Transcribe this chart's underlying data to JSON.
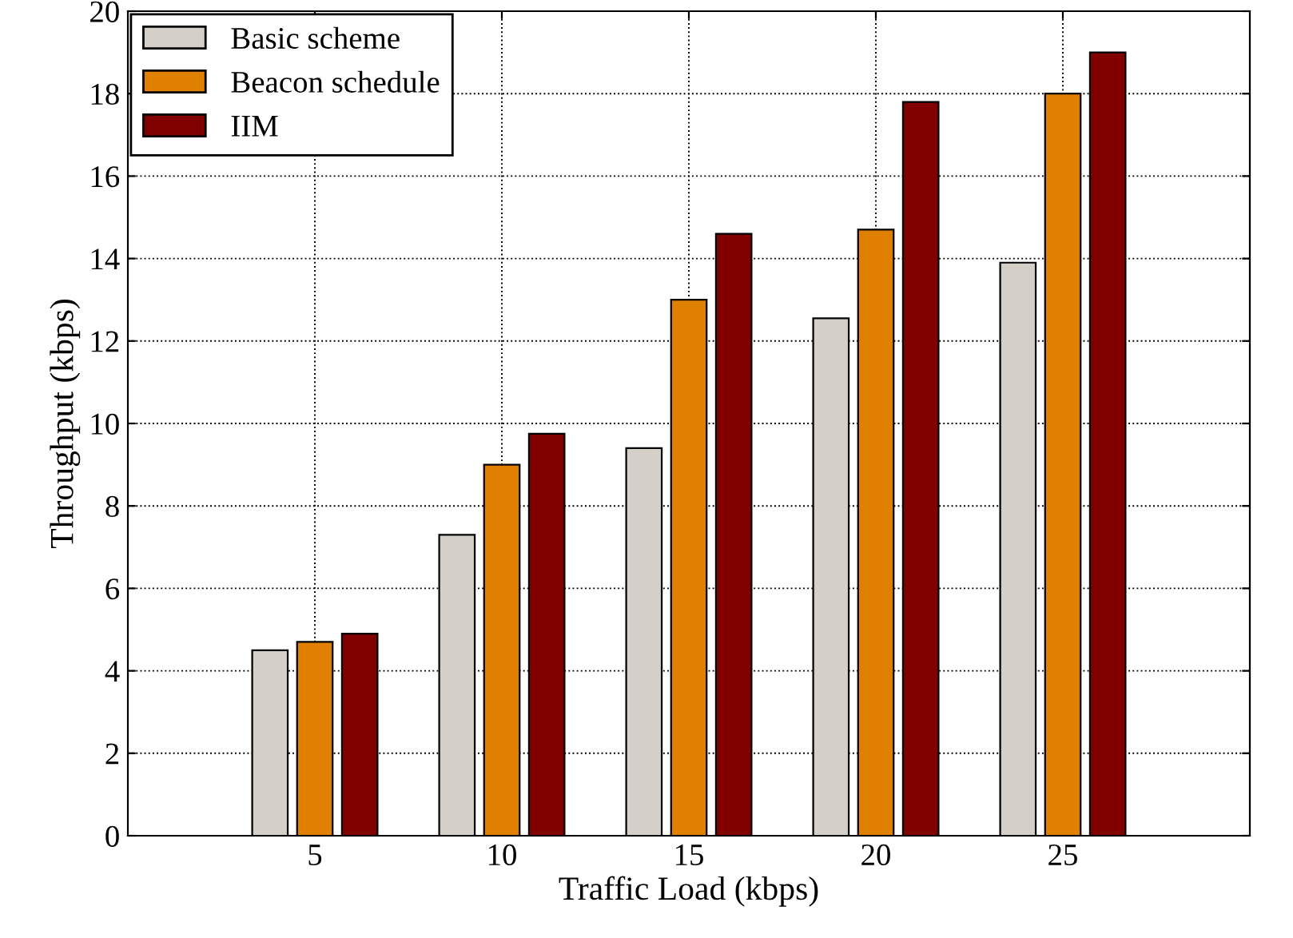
{
  "chart_data": {
    "type": "bar",
    "xlabel": "Traffic Load (kbps)",
    "ylabel": "Throughput (kbps)",
    "x": [
      5,
      10,
      15,
      20,
      25
    ],
    "series": [
      {
        "name": "Basic scheme",
        "color": "#d4d0c8",
        "values": [
          4.5,
          7.3,
          9.4,
          12.55,
          13.9
        ]
      },
      {
        "name": "Beacon schedule",
        "color": "#e08000",
        "values": [
          4.7,
          9.0,
          13.0,
          14.7,
          18.0
        ]
      },
      {
        "name": "IIM",
        "color": "#800000",
        "values": [
          4.9,
          9.75,
          14.6,
          17.8,
          19.0
        ]
      }
    ],
    "xlim": [
      0,
      30
    ],
    "xticks": [
      5,
      10,
      15,
      20,
      25
    ],
    "ylim": [
      0,
      20
    ],
    "yticks": [
      0,
      2,
      4,
      6,
      8,
      10,
      12,
      14,
      16,
      18,
      20
    ],
    "grid": true,
    "legend": "top left"
  }
}
